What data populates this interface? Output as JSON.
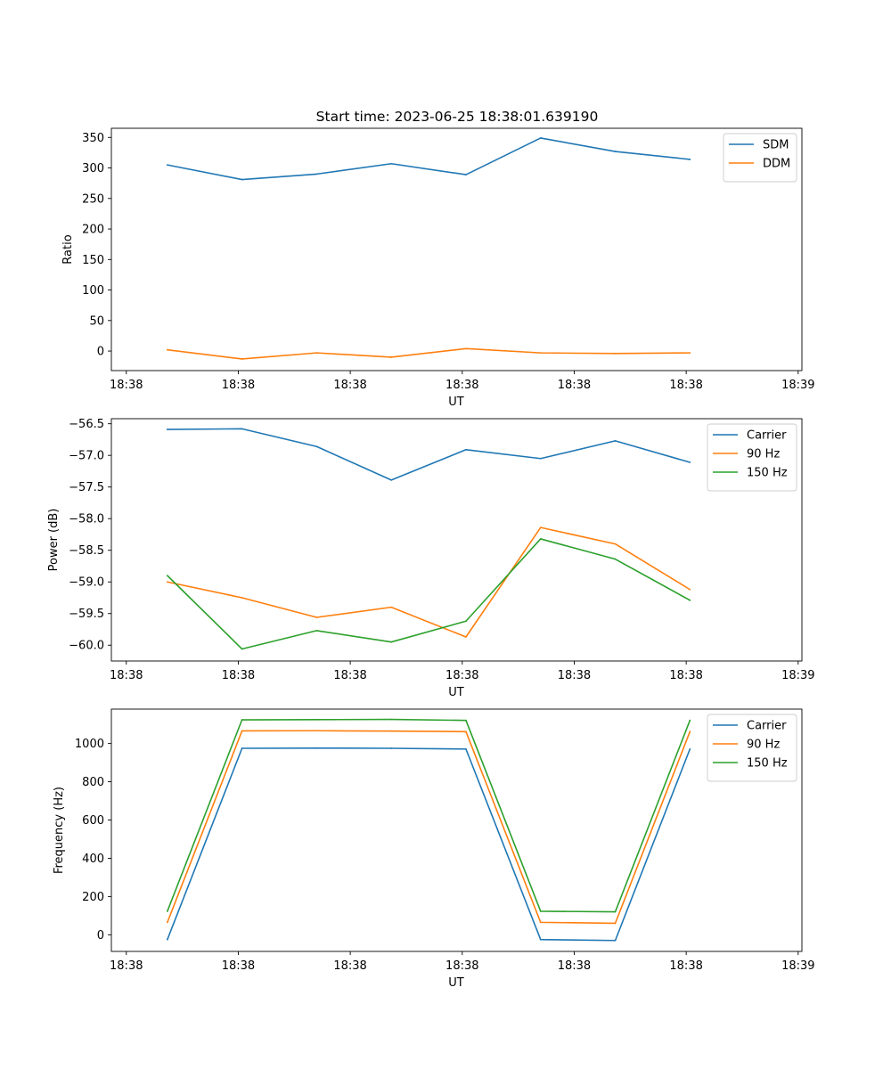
{
  "figure_title": "Start time: 2023-06-25 18:38:01.639190",
  "chart_data": [
    {
      "type": "line",
      "title": "",
      "xlabel": "UT",
      "ylabel": "Ratio",
      "x": [
        1,
        2,
        3,
        4,
        5,
        6,
        7,
        8
      ],
      "xlim": [
        0.25,
        9.5
      ],
      "ylim": [
        -32,
        365
      ],
      "xticks": [
        0.45,
        1.95,
        3.45,
        4.95,
        6.45,
        7.95,
        9.45
      ],
      "xtick_labels": [
        "18:38",
        "18:38",
        "18:38",
        "18:38",
        "18:38",
        "18:38",
        "18:39"
      ],
      "yticks": [
        0,
        50,
        100,
        150,
        200,
        250,
        300,
        350
      ],
      "ytick_labels": [
        "0",
        "50",
        "100",
        "150",
        "200",
        "250",
        "300",
        "350"
      ],
      "legend_position": "upper-right",
      "grid": false,
      "series": [
        {
          "name": "SDM",
          "color": "#1f77b4",
          "values": [
            305,
            281,
            290,
            307,
            289,
            349,
            327,
            314
          ]
        },
        {
          "name": "DDM",
          "color": "#ff7f0e",
          "values": [
            2,
            -13,
            -3,
            -10,
            4,
            -3,
            -4,
            -3
          ]
        }
      ]
    },
    {
      "type": "line",
      "title": "",
      "xlabel": "UT",
      "ylabel": "Power (dB)",
      "x": [
        1,
        2,
        3,
        4,
        5,
        6,
        7,
        8
      ],
      "xlim": [
        0.25,
        9.5
      ],
      "ylim": [
        -60.25,
        -56.42
      ],
      "xticks": [
        0.45,
        1.95,
        3.45,
        4.95,
        6.45,
        7.95,
        9.45
      ],
      "xtick_labels": [
        "18:38",
        "18:38",
        "18:38",
        "18:38",
        "18:38",
        "18:38",
        "18:39"
      ],
      "yticks": [
        -60.0,
        -59.5,
        -59.0,
        -58.5,
        -58.0,
        -57.5,
        -57.0,
        -56.5
      ],
      "ytick_labels": [
        "−60.0",
        "−59.5",
        "−59.0",
        "−58.5",
        "−58.0",
        "−57.5",
        "−57.0",
        "−56.5"
      ],
      "legend_position": "upper-right",
      "grid": false,
      "series": [
        {
          "name": "Carrier",
          "color": "#1f77b4",
          "values": [
            -56.59,
            -56.58,
            -56.86,
            -57.39,
            -56.91,
            -57.05,
            -56.77,
            -57.11
          ]
        },
        {
          "name": "90 Hz",
          "color": "#ff7f0e",
          "values": [
            -59.0,
            -59.25,
            -59.56,
            -59.4,
            -59.87,
            -58.14,
            -58.4,
            -59.12
          ]
        },
        {
          "name": "150 Hz",
          "color": "#2ca02c",
          "values": [
            -58.9,
            -60.06,
            -59.77,
            -59.95,
            -59.62,
            -58.32,
            -58.64,
            -59.29
          ]
        }
      ]
    },
    {
      "type": "line",
      "title": "",
      "xlabel": "UT",
      "ylabel": "Frequency (Hz)",
      "x": [
        1,
        2,
        3,
        4,
        5,
        6,
        7,
        8
      ],
      "xlim": [
        0.25,
        9.5
      ],
      "ylim": [
        -87,
        1180
      ],
      "xticks": [
        0.45,
        1.95,
        3.45,
        4.95,
        6.45,
        7.95,
        9.45
      ],
      "xtick_labels": [
        "18:38",
        "18:38",
        "18:38",
        "18:38",
        "18:38",
        "18:38",
        "18:39"
      ],
      "yticks": [
        0,
        200,
        400,
        600,
        800,
        1000
      ],
      "ytick_labels": [
        "0",
        "200",
        "400",
        "600",
        "800",
        "1000"
      ],
      "legend_position": "upper-right",
      "grid": false,
      "series": [
        {
          "name": "Carrier",
          "color": "#1f77b4",
          "values": [
            -25,
            975,
            976,
            975,
            971,
            -25,
            -30,
            971
          ]
        },
        {
          "name": "90 Hz",
          "color": "#ff7f0e",
          "values": [
            65,
            1066,
            1067,
            1065,
            1062,
            65,
            60,
            1062
          ]
        },
        {
          "name": "150 Hz",
          "color": "#2ca02c",
          "values": [
            123,
            1124,
            1125,
            1126,
            1121,
            123,
            120,
            1121
          ]
        }
      ]
    }
  ]
}
